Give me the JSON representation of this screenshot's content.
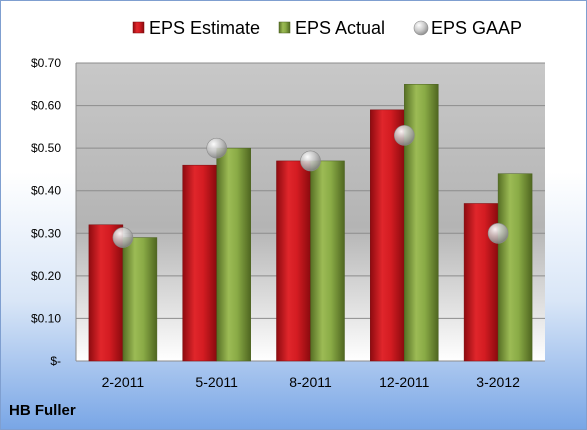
{
  "company": "HB Fuller",
  "chart_data": {
    "type": "bar",
    "categories": [
      "2-2011",
      "5-2011",
      "8-2011",
      "12-2011",
      "3-2012"
    ],
    "series": [
      {
        "name": "EPS Estimate",
        "kind": "bar",
        "color": "#c0151b",
        "values": [
          0.32,
          0.46,
          0.47,
          0.59,
          0.37
        ]
      },
      {
        "name": "EPS Actual",
        "kind": "bar",
        "color": "#7a9a3a",
        "values": [
          0.29,
          0.5,
          0.47,
          0.65,
          0.44
        ]
      },
      {
        "name": "EPS GAAP",
        "kind": "marker",
        "color": "#b8b8b8",
        "values": [
          0.29,
          0.5,
          0.47,
          0.53,
          0.3
        ]
      }
    ],
    "ylim": [
      0,
      0.7
    ],
    "yticks": [
      0,
      0.1,
      0.2,
      0.3,
      0.4,
      0.5,
      0.6,
      0.7
    ],
    "ytick_labels": [
      "$-",
      "$0.10",
      "$0.20",
      "$0.30",
      "$0.40",
      "$0.50",
      "$0.60",
      "$0.70"
    ],
    "grid": true,
    "legend": "top"
  }
}
